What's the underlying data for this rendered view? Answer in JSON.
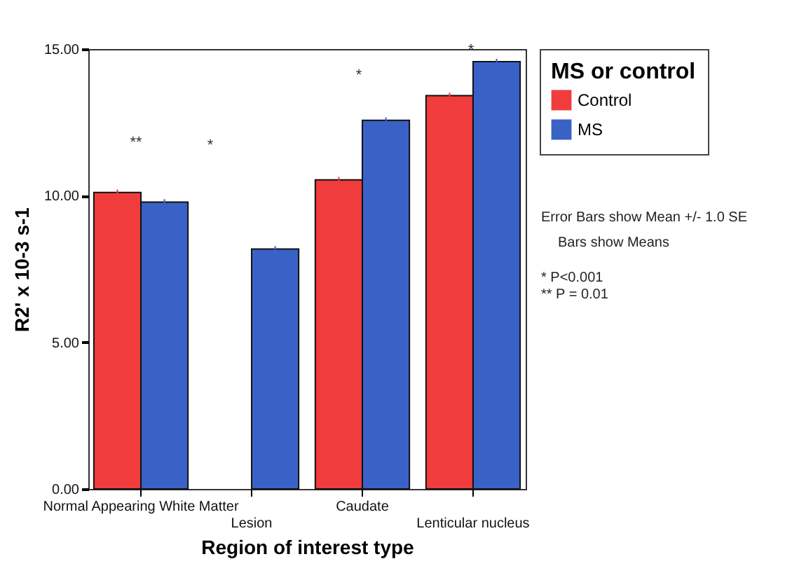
{
  "chart_data": {
    "type": "bar",
    "xlabel": "Region of interest type",
    "ylabel": "R2' x 10-3 s-1",
    "legend_title": "MS or control",
    "categories": [
      "Normal Appearing White Matter",
      "Lesion",
      "Caudate",
      "Lenticular nucleus"
    ],
    "series": [
      {
        "name": "Control",
        "color": "#f03c3c",
        "values": [
          10.11,
          null,
          10.54,
          13.41
        ],
        "errors": [
          0.1,
          null,
          0.1,
          0.1
        ]
      },
      {
        "name": "MS",
        "color": "#3a62c6",
        "values": [
          9.78,
          8.18,
          12.57,
          14.57
        ],
        "errors": [
          0.1,
          0.1,
          0.1,
          0.1
        ]
      }
    ],
    "ylim": [
      0,
      15
    ],
    "yticks": [
      {
        "value": 0,
        "label": "0.00"
      },
      {
        "value": 5,
        "label": "5.00"
      },
      {
        "value": 10,
        "label": "10.00"
      },
      {
        "value": 15,
        "label": "15.00"
      }
    ],
    "grid": false,
    "legend": "top right",
    "annotations": [
      "**",
      "*",
      "*",
      "*",
      "Error Bars show Mean +/- 1.0 SE",
      "Bars show Means",
      "* P<0.001",
      "** P = 0.01"
    ]
  }
}
